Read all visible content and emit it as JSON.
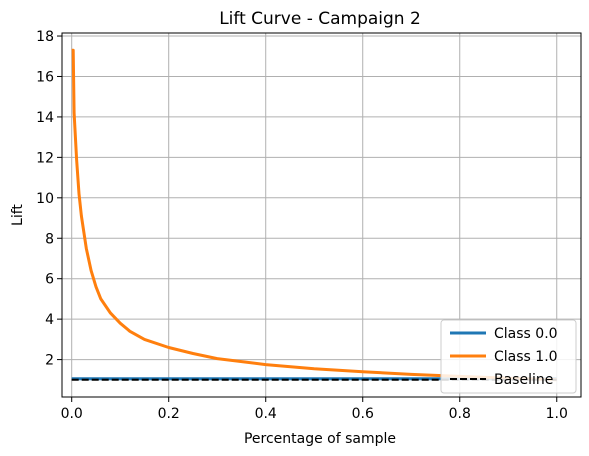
{
  "chart_data": {
    "type": "line",
    "title": "Lift Curve - Campaign 2",
    "xlabel": "Percentage of sample",
    "ylabel": "Lift",
    "xlim": [
      -0.02,
      1.05
    ],
    "ylim": [
      0.15,
      18.15
    ],
    "xticks": [
      0.0,
      0.2,
      0.4,
      0.6,
      0.8,
      1.0
    ],
    "xtick_labels": [
      "0.0",
      "0.2",
      "0.4",
      "0.6",
      "0.8",
      "1.0"
    ],
    "yticks": [
      2,
      4,
      6,
      8,
      10,
      12,
      14,
      16,
      18
    ],
    "ytick_labels": [
      "2",
      "4",
      "6",
      "8",
      "10",
      "12",
      "14",
      "16",
      "18"
    ],
    "grid": true,
    "legend": {
      "placement": "lower-right"
    },
    "series": [
      {
        "name": "Class 0.0",
        "color": "#1f77b4",
        "style": "solid",
        "x": [
          0.0,
          0.25,
          0.5,
          0.75,
          1.0
        ],
        "y": [
          1.05,
          1.05,
          1.05,
          1.05,
          1.05
        ]
      },
      {
        "name": "Class 1.0",
        "color": "#ff7f0e",
        "style": "solid",
        "x": [
          0.0,
          0.003,
          0.005,
          0.01,
          0.015,
          0.02,
          0.03,
          0.04,
          0.05,
          0.06,
          0.08,
          0.1,
          0.12,
          0.15,
          0.2,
          0.25,
          0.3,
          0.4,
          0.5,
          0.6,
          0.7,
          0.8,
          0.9,
          1.0
        ],
        "y": [
          17.3,
          17.3,
          14.2,
          11.9,
          10.2,
          9.1,
          7.5,
          6.4,
          5.6,
          5.0,
          4.3,
          3.8,
          3.4,
          3.0,
          2.6,
          2.3,
          2.05,
          1.75,
          1.55,
          1.4,
          1.27,
          1.17,
          1.08,
          1.0
        ]
      },
      {
        "name": "Baseline",
        "color": "#000000",
        "style": "dashed",
        "x": [
          0.0,
          1.0
        ],
        "y": [
          1.0,
          1.0
        ]
      }
    ]
  }
}
